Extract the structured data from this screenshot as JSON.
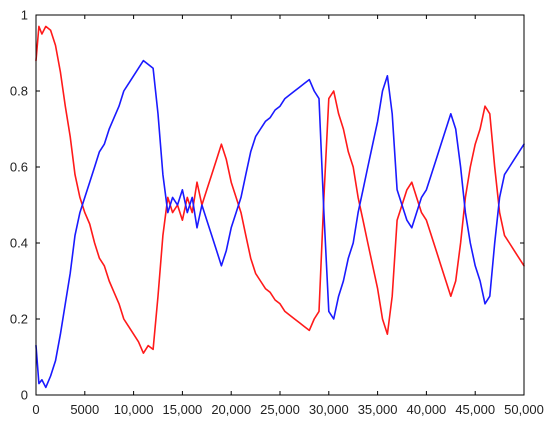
{
  "chart_data": {
    "type": "line",
    "title": "",
    "xlabel": "",
    "ylabel": "",
    "xlim": [
      0,
      50000
    ],
    "ylim": [
      0,
      1
    ],
    "grid": false,
    "x_ticks": [
      0,
      5000,
      10000,
      15000,
      20000,
      25000,
      30000,
      35000,
      40000,
      45000,
      50000
    ],
    "x_tick_labels": [
      "0",
      "5000",
      "10,000",
      "15,000",
      "20,000",
      "25,000",
      "30,000",
      "35,000",
      "40,000",
      "45,000",
      "50,000"
    ],
    "y_ticks": [
      0,
      0.2,
      0.4,
      0.6,
      0.8,
      1
    ],
    "y_tick_labels": [
      "0",
      "0.2",
      "0.4",
      "0.6",
      "0.8",
      "1"
    ],
    "colors": {
      "red": "#ff1a1a",
      "blue": "#1a1aff",
      "axis": "#000000",
      "background": "#ffffff"
    },
    "series": [
      {
        "color": "#ff1a1a",
        "x": [
          0,
          300,
          600,
          1000,
          1500,
          2000,
          2500,
          3000,
          3500,
          4000,
          4500,
          5000,
          5500,
          6000,
          6500,
          7000,
          7500,
          8000,
          8500,
          9000,
          9500,
          10000,
          10500,
          11000,
          11500,
          12000,
          12500,
          13000,
          13500,
          14000,
          14500,
          15000,
          15500,
          16000,
          16500,
          17000,
          17500,
          18000,
          18500,
          19000,
          19500,
          20000,
          20500,
          21000,
          21500,
          22000,
          22500,
          23000,
          23500,
          24000,
          24500,
          25000,
          25500,
          26000,
          26500,
          27000,
          27500,
          28000,
          28500,
          29000,
          29500,
          30000,
          30500,
          31000,
          31500,
          32000,
          32500,
          33000,
          33500,
          34000,
          34500,
          35000,
          35500,
          36000,
          36500,
          37000,
          37500,
          38000,
          38500,
          39000,
          39500,
          40000,
          40500,
          41000,
          41500,
          42000,
          42500,
          43000,
          43500,
          44000,
          44500,
          45000,
          45500,
          46000,
          46500,
          47000,
          47500,
          48000,
          48500,
          49000,
          49500,
          50000
        ],
        "values": [
          0.88,
          0.97,
          0.95,
          0.97,
          0.96,
          0.92,
          0.85,
          0.76,
          0.68,
          0.58,
          0.52,
          0.48,
          0.45,
          0.4,
          0.36,
          0.34,
          0.3,
          0.27,
          0.24,
          0.2,
          0.18,
          0.16,
          0.14,
          0.11,
          0.13,
          0.12,
          0.26,
          0.42,
          0.52,
          0.48,
          0.5,
          0.46,
          0.52,
          0.48,
          0.56,
          0.5,
          0.54,
          0.58,
          0.62,
          0.66,
          0.62,
          0.56,
          0.52,
          0.48,
          0.42,
          0.36,
          0.32,
          0.3,
          0.28,
          0.27,
          0.25,
          0.24,
          0.22,
          0.21,
          0.2,
          0.19,
          0.18,
          0.17,
          0.2,
          0.22,
          0.52,
          0.78,
          0.8,
          0.74,
          0.7,
          0.64,
          0.6,
          0.52,
          0.46,
          0.4,
          0.34,
          0.28,
          0.2,
          0.16,
          0.26,
          0.46,
          0.5,
          0.54,
          0.56,
          0.52,
          0.48,
          0.46,
          0.42,
          0.38,
          0.34,
          0.3,
          0.26,
          0.3,
          0.4,
          0.52,
          0.6,
          0.66,
          0.7,
          0.76,
          0.74,
          0.6,
          0.48,
          0.42,
          0.4,
          0.38,
          0.36,
          0.34
        ]
      },
      {
        "color": "#1a1aff",
        "x": [
          0,
          300,
          600,
          1000,
          1500,
          2000,
          2500,
          3000,
          3500,
          4000,
          4500,
          5000,
          5500,
          6000,
          6500,
          7000,
          7500,
          8000,
          8500,
          9000,
          9500,
          10000,
          10500,
          11000,
          11500,
          12000,
          12500,
          13000,
          13500,
          14000,
          14500,
          15000,
          15500,
          16000,
          16500,
          17000,
          17500,
          18000,
          18500,
          19000,
          19500,
          20000,
          20500,
          21000,
          21500,
          22000,
          22500,
          23000,
          23500,
          24000,
          24500,
          25000,
          25500,
          26000,
          26500,
          27000,
          27500,
          28000,
          28500,
          29000,
          29500,
          30000,
          30500,
          31000,
          31500,
          32000,
          32500,
          33000,
          33500,
          34000,
          34500,
          35000,
          35500,
          36000,
          36500,
          37000,
          37500,
          38000,
          38500,
          39000,
          39500,
          40000,
          40500,
          41000,
          41500,
          42000,
          42500,
          43000,
          43500,
          44000,
          44500,
          45000,
          45500,
          46000,
          46500,
          47000,
          47500,
          48000,
          48500,
          49000,
          49500,
          50000
        ],
        "values": [
          0.13,
          0.03,
          0.04,
          0.02,
          0.05,
          0.09,
          0.16,
          0.24,
          0.32,
          0.42,
          0.48,
          0.52,
          0.56,
          0.6,
          0.64,
          0.66,
          0.7,
          0.73,
          0.76,
          0.8,
          0.82,
          0.84,
          0.86,
          0.88,
          0.87,
          0.86,
          0.74,
          0.58,
          0.48,
          0.52,
          0.5,
          0.54,
          0.48,
          0.52,
          0.44,
          0.5,
          0.46,
          0.42,
          0.38,
          0.34,
          0.38,
          0.44,
          0.48,
          0.52,
          0.58,
          0.64,
          0.68,
          0.7,
          0.72,
          0.73,
          0.75,
          0.76,
          0.78,
          0.79,
          0.8,
          0.81,
          0.82,
          0.83,
          0.8,
          0.78,
          0.48,
          0.22,
          0.2,
          0.26,
          0.3,
          0.36,
          0.4,
          0.48,
          0.54,
          0.6,
          0.66,
          0.72,
          0.8,
          0.84,
          0.74,
          0.54,
          0.5,
          0.46,
          0.44,
          0.48,
          0.52,
          0.54,
          0.58,
          0.62,
          0.66,
          0.7,
          0.74,
          0.7,
          0.6,
          0.48,
          0.4,
          0.34,
          0.3,
          0.24,
          0.26,
          0.4,
          0.52,
          0.58,
          0.6,
          0.62,
          0.64,
          0.66
        ]
      }
    ]
  }
}
